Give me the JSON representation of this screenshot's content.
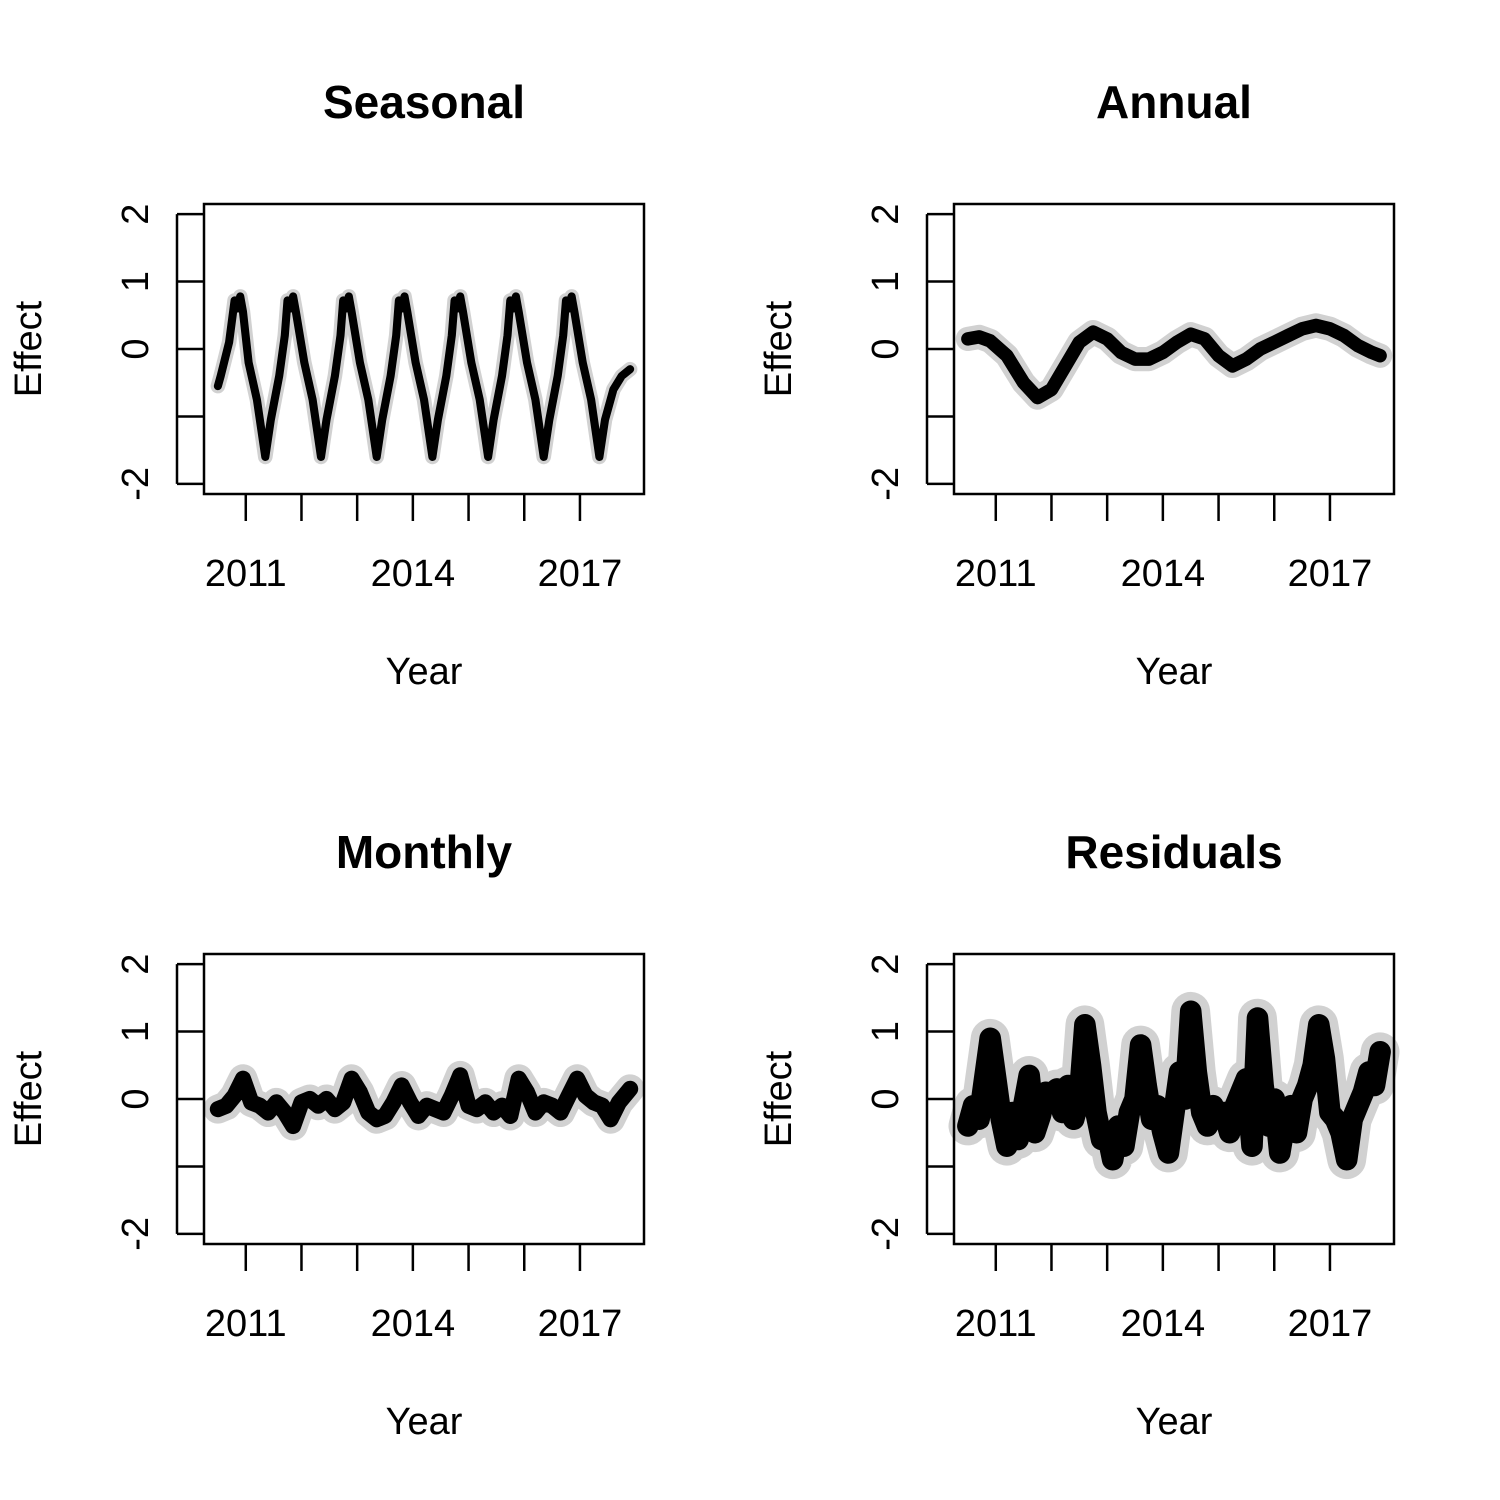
{
  "chart_data": [
    {
      "type": "line",
      "title": "Seasonal",
      "xlabel": "Year",
      "ylabel": "Effect",
      "xlim": [
        2010.25,
        2018.15
      ],
      "ylim": [
        -2.15,
        2.15
      ],
      "x_ticks": [
        2011,
        2012,
        2013,
        2014,
        2015,
        2016,
        2017
      ],
      "x_tick_labels": [
        "2011",
        "2014",
        "2017"
      ],
      "x_tick_labels_at": [
        2011,
        2014,
        2017
      ],
      "y_ticks": [
        -2,
        -1,
        0,
        1,
        2
      ],
      "y_tick_labels": [
        "-2",
        "",
        "0",
        "1",
        "2"
      ],
      "band_width": 0.12,
      "grid": false,
      "series": [
        {
          "x": [
            2010.5,
            2010.55,
            2010.7,
            2010.8,
            2010.85,
            2010.9,
            2010.95,
            2011.05,
            2011.2,
            2011.35,
            2011.45,
            2011.6,
            2011.7,
            2011.75,
            2011.8,
            2011.85,
            2011.9,
            2012.05,
            2012.2,
            2012.35,
            2012.45,
            2012.6,
            2012.7,
            2012.75,
            2012.8,
            2012.85,
            2012.9,
            2013.05,
            2013.2,
            2013.35,
            2013.45,
            2013.6,
            2013.7,
            2013.75,
            2013.8,
            2013.85,
            2013.9,
            2014.05,
            2014.2,
            2014.35,
            2014.45,
            2014.6,
            2014.7,
            2014.75,
            2014.8,
            2014.85,
            2014.9,
            2015.05,
            2015.2,
            2015.35,
            2015.45,
            2015.6,
            2015.7,
            2015.75,
            2015.8,
            2015.85,
            2015.9,
            2016.05,
            2016.2,
            2016.35,
            2016.45,
            2016.6,
            2016.7,
            2016.75,
            2016.8,
            2016.85,
            2016.9,
            2017.05,
            2017.2,
            2017.35,
            2017.45,
            2017.6,
            2017.75,
            2017.9
          ],
          "y": [
            -0.55,
            -0.4,
            0.1,
            0.72,
            0.6,
            0.78,
            0.55,
            -0.2,
            -0.75,
            -1.6,
            -1.05,
            -0.4,
            0.2,
            0.72,
            0.6,
            0.78,
            0.55,
            -0.2,
            -0.75,
            -1.6,
            -1.05,
            -0.4,
            0.2,
            0.72,
            0.6,
            0.78,
            0.55,
            -0.2,
            -0.75,
            -1.6,
            -1.05,
            -0.4,
            0.2,
            0.72,
            0.6,
            0.78,
            0.55,
            -0.2,
            -0.75,
            -1.6,
            -1.05,
            -0.4,
            0.2,
            0.72,
            0.6,
            0.78,
            0.55,
            -0.2,
            -0.75,
            -1.6,
            -1.05,
            -0.4,
            0.2,
            0.72,
            0.6,
            0.78,
            0.55,
            -0.2,
            -0.75,
            -1.6,
            -1.05,
            -0.4,
            0.2,
            0.72,
            0.6,
            0.78,
            0.55,
            -0.2,
            -0.75,
            -1.6,
            -1.05,
            -0.6,
            -0.4,
            -0.3
          ]
        }
      ]
    },
    {
      "type": "line",
      "title": "Annual",
      "xlabel": "Year",
      "ylabel": "Effect",
      "xlim": [
        2010.25,
        2018.15
      ],
      "ylim": [
        -2.15,
        2.15
      ],
      "x_ticks": [
        2011,
        2012,
        2013,
        2014,
        2015,
        2016,
        2017
      ],
      "x_tick_labels": [
        "2011",
        "2014",
        "2017"
      ],
      "x_tick_labels_at": [
        2011,
        2014,
        2017
      ],
      "y_ticks": [
        -2,
        -1,
        0,
        1,
        2
      ],
      "y_tick_labels": [
        "-2",
        "",
        "0",
        "1",
        "2"
      ],
      "band_width": 0.2,
      "grid": false,
      "series": [
        {
          "x": [
            2010.5,
            2010.7,
            2010.9,
            2011.2,
            2011.5,
            2011.75,
            2012.0,
            2012.25,
            2012.5,
            2012.75,
            2013.0,
            2013.25,
            2013.5,
            2013.75,
            2014.0,
            2014.25,
            2014.5,
            2014.75,
            2015.0,
            2015.25,
            2015.5,
            2015.75,
            2016.0,
            2016.25,
            2016.5,
            2016.75,
            2017.0,
            2017.25,
            2017.5,
            2017.75,
            2017.9
          ],
          "y": [
            0.15,
            0.18,
            0.12,
            -0.1,
            -0.5,
            -0.72,
            -0.6,
            -0.25,
            0.1,
            0.25,
            0.15,
            -0.05,
            -0.15,
            -0.15,
            -0.05,
            0.1,
            0.22,
            0.15,
            -0.1,
            -0.25,
            -0.15,
            0.0,
            0.1,
            0.2,
            0.3,
            0.35,
            0.3,
            0.2,
            0.05,
            -0.05,
            -0.1
          ]
        }
      ]
    },
    {
      "type": "line",
      "title": "Monthly",
      "xlabel": "Year",
      "ylabel": "Effect",
      "xlim": [
        2010.25,
        2018.15
      ],
      "ylim": [
        -2.15,
        2.15
      ],
      "x_ticks": [
        2011,
        2012,
        2013,
        2014,
        2015,
        2016,
        2017
      ],
      "x_tick_labels": [
        "2011",
        "2014",
        "2017"
      ],
      "x_tick_labels_at": [
        2011,
        2014,
        2017
      ],
      "y_ticks": [
        -2,
        -1,
        0,
        1,
        2
      ],
      "y_tick_labels": [
        "-2",
        "",
        "0",
        "1",
        "2"
      ],
      "band_width": 0.24,
      "grid": false,
      "series": [
        {
          "x": [
            2010.5,
            2010.65,
            2010.8,
            2010.95,
            2011.1,
            2011.25,
            2011.4,
            2011.55,
            2011.7,
            2011.85,
            2012.0,
            2012.15,
            2012.3,
            2012.45,
            2012.6,
            2012.75,
            2012.9,
            2013.05,
            2013.2,
            2013.35,
            2013.5,
            2013.65,
            2013.8,
            2013.95,
            2014.1,
            2014.25,
            2014.4,
            2014.55,
            2014.7,
            2014.85,
            2015.0,
            2015.15,
            2015.3,
            2015.45,
            2015.6,
            2015.75,
            2015.9,
            2016.05,
            2016.2,
            2016.35,
            2016.5,
            2016.65,
            2016.8,
            2016.95,
            2017.1,
            2017.25,
            2017.4,
            2017.55,
            2017.7,
            2017.85,
            2017.9
          ],
          "y": [
            -0.15,
            -0.1,
            0.05,
            0.3,
            -0.05,
            -0.1,
            -0.2,
            -0.05,
            -0.2,
            -0.4,
            -0.05,
            0.0,
            -0.1,
            0.0,
            -0.15,
            -0.05,
            0.3,
            0.1,
            -0.2,
            -0.3,
            -0.25,
            -0.05,
            0.2,
            -0.05,
            -0.25,
            -0.1,
            -0.15,
            -0.2,
            0.05,
            0.35,
            -0.1,
            -0.15,
            -0.05,
            -0.2,
            -0.1,
            -0.25,
            0.3,
            0.1,
            -0.2,
            -0.05,
            -0.1,
            -0.2,
            0.05,
            0.3,
            0.05,
            -0.05,
            -0.1,
            -0.3,
            -0.05,
            0.1,
            0.15
          ]
        }
      ]
    },
    {
      "type": "line",
      "title": "Residuals",
      "xlabel": "Year",
      "ylabel": "Effect",
      "xlim": [
        2010.25,
        2018.15
      ],
      "ylim": [
        -2.15,
        2.15
      ],
      "x_ticks": [
        2011,
        2012,
        2013,
        2014,
        2015,
        2016,
        2017
      ],
      "x_tick_labels": [
        "2011",
        "2014",
        "2017"
      ],
      "x_tick_labels_at": [
        2011,
        2014,
        2017
      ],
      "y_ticks": [
        -2,
        -1,
        0,
        1,
        2
      ],
      "y_tick_labels": [
        "-2",
        "",
        "0",
        "1",
        "2"
      ],
      "band_width": 0.32,
      "grid": false,
      "series": [
        {
          "x": [
            2010.5,
            2010.6,
            2010.7,
            2010.8,
            2010.9,
            2011.0,
            2011.1,
            2011.2,
            2011.3,
            2011.4,
            2011.5,
            2011.6,
            2011.7,
            2011.8,
            2011.9,
            2012.0,
            2012.1,
            2012.2,
            2012.3,
            2012.4,
            2012.5,
            2012.6,
            2012.7,
            2012.8,
            2012.9,
            2013.0,
            2013.1,
            2013.2,
            2013.3,
            2013.4,
            2013.5,
            2013.6,
            2013.7,
            2013.8,
            2013.9,
            2014.0,
            2014.1,
            2014.2,
            2014.3,
            2014.4,
            2014.5,
            2014.6,
            2014.7,
            2014.8,
            2014.9,
            2015.0,
            2015.1,
            2015.2,
            2015.3,
            2015.4,
            2015.5,
            2015.6,
            2015.7,
            2015.8,
            2015.9,
            2016.0,
            2016.1,
            2016.2,
            2016.3,
            2016.4,
            2016.5,
            2016.6,
            2016.7,
            2016.8,
            2016.9,
            2017.0,
            2017.1,
            2017.2,
            2017.3,
            2017.4,
            2017.5,
            2017.6,
            2017.7,
            2017.8,
            2017.9
          ],
          "y": [
            -0.4,
            -0.1,
            -0.3,
            0.3,
            0.9,
            0.3,
            -0.3,
            -0.7,
            -0.2,
            -0.6,
            -0.1,
            0.35,
            -0.5,
            -0.25,
            0.1,
            -0.05,
            0.15,
            -0.2,
            0.2,
            -0.3,
            0.0,
            1.1,
            0.5,
            -0.2,
            -0.6,
            -0.5,
            -0.9,
            -0.4,
            -0.7,
            -0.2,
            0.0,
            0.8,
            0.2,
            -0.3,
            -0.1,
            -0.5,
            -0.8,
            -0.2,
            0.4,
            0.0,
            1.3,
            0.4,
            -0.2,
            -0.4,
            -0.1,
            -0.3,
            -0.2,
            -0.5,
            -0.1,
            0.1,
            0.3,
            -0.7,
            1.2,
            0.2,
            -0.4,
            0.0,
            -0.8,
            -0.3,
            -0.1,
            -0.5,
            0.0,
            0.2,
            0.5,
            1.1,
            0.6,
            -0.2,
            -0.3,
            -0.5,
            -0.9,
            -0.3,
            -0.1,
            0.1,
            0.4,
            0.2,
            0.7
          ]
        }
      ]
    }
  ]
}
